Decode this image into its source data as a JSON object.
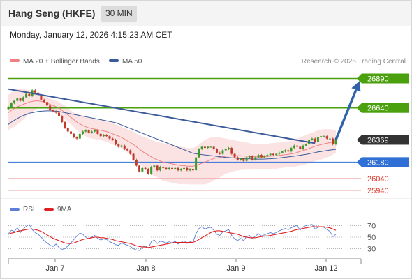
{
  "header": {
    "instrument": "Hang Seng (HKFE)",
    "interval": "30 MIN"
  },
  "datetime": "Monday, January 12, 2026 4:15:23 AM CET",
  "credit": "Research © 2026 Trading Central",
  "colors": {
    "resistance": "#4aa00d",
    "support": "#2f6fd6",
    "support_light": "#e88a8a",
    "ma20": "#f08080",
    "ma50": "#3a5a9a",
    "bands": "#fbe3e3",
    "trend": "#3a5a9a",
    "arrow": "#2f63a8",
    "candle_up": "#3a9a2a",
    "candle_down": "#c0392b",
    "rsi": "#5b7fd6",
    "rsi_ma": "#e02020",
    "last": "#333333"
  },
  "chart_data": [
    {
      "type": "candlestick",
      "title": "",
      "legend": [
        {
          "name": "MA 20 + Bollinger Bands",
          "color": "#f08080"
        },
        {
          "name": "MA 50",
          "color": "#3a5a9a"
        }
      ],
      "x_ticks": [
        "Jan 7",
        "Jan 8",
        "Jan 9",
        "Jan 12"
      ],
      "ylim": [
        25880,
        26970
      ],
      "levels": [
        {
          "value": 26890,
          "label": "26890",
          "kind": "resistance"
        },
        {
          "value": 26640,
          "label": "26640",
          "kind": "resistance"
        },
        {
          "value": 26369,
          "label": "26369",
          "kind": "last"
        },
        {
          "value": 26180,
          "label": "26180",
          "kind": "support"
        },
        {
          "value": 26040,
          "label": "26040",
          "kind": "support-light"
        },
        {
          "value": 25940,
          "label": "25940",
          "kind": "support-light"
        }
      ],
      "trendline": {
        "from_index": 0,
        "from_value": 26800,
        "to_index": 103,
        "to_value": 26340
      },
      "arrow": {
        "from_index": 110,
        "from_value": 26370,
        "to_index": 118,
        "to_value": 26870
      },
      "close": [
        26650,
        26680,
        26700,
        26720,
        26700,
        26730,
        26760,
        26740,
        26790,
        26770,
        26750,
        26710,
        26690,
        26660,
        26620,
        26610,
        26600,
        26570,
        26520,
        26470,
        26440,
        26420,
        26390,
        26380,
        26420,
        26440,
        26450,
        26430,
        26440,
        26450,
        26420,
        26400,
        26410,
        26400,
        26380,
        26370,
        26330,
        26310,
        26320,
        26290,
        26280,
        26250,
        26200,
        26150,
        26100,
        26130,
        26120,
        26080,
        26140,
        26150,
        26110,
        26140,
        26130,
        26120,
        26130,
        26120,
        26130,
        26110,
        26120,
        26130,
        26110,
        26120,
        26110,
        26220,
        26290,
        26310,
        26300,
        26310,
        26310,
        26290,
        26260,
        26250,
        26280,
        26290,
        26300,
        26250,
        26220,
        26200,
        26210,
        26190,
        26220,
        26230,
        26200,
        26220,
        26240,
        26220,
        26230,
        26240,
        26250,
        26240,
        26250,
        26260,
        26270,
        26280,
        26270,
        26300,
        26320,
        26310,
        26290,
        26320,
        26330,
        26370,
        26380,
        26350,
        26390,
        26400,
        26400,
        26380,
        26380,
        26330,
        26369
      ],
      "ma20": [
        26600,
        26620,
        26635,
        26650,
        26660,
        26670,
        26680,
        26690,
        26695,
        26700,
        26700,
        26695,
        26690,
        26680,
        26670,
        26660,
        26650,
        26640,
        26620,
        26600,
        26580,
        26560,
        26540,
        26520,
        26505,
        26490,
        26480,
        26470,
        26465,
        26460,
        26455,
        26450,
        26445,
        26440,
        26430,
        26420,
        26410,
        26400,
        26390,
        26375,
        26360,
        26345,
        26330,
        26310,
        26290,
        26270,
        26255,
        26240,
        26225,
        26210,
        26200,
        26190,
        26180,
        26175,
        26170,
        26165,
        26160,
        26155,
        26150,
        26150,
        26145,
        26145,
        26145,
        26150,
        26160,
        26170,
        26180,
        26190,
        26200,
        26210,
        26215,
        26220,
        26225,
        26230,
        26232,
        26234,
        26234,
        26234,
        26234,
        26232,
        26230,
        26228,
        26226,
        26224,
        26224,
        26225,
        26226,
        26228,
        26230,
        26232,
        26234,
        26237,
        26240,
        26243,
        26246,
        26250,
        26255,
        26262,
        26270,
        26278,
        26286,
        26295,
        26305,
        26315,
        26322,
        26328,
        26335,
        26340,
        26345,
        26350,
        26355
      ],
      "bb_upper": [
        26750,
        26770,
        26790,
        26800,
        26800,
        26800,
        26795,
        26790,
        26785,
        26780,
        26760,
        26750,
        26740,
        26730,
        26720,
        26710,
        26700,
        26690,
        26675,
        26660,
        26640,
        26620,
        26600,
        26590,
        26580,
        26570,
        26560,
        26555,
        26550,
        26545,
        26540,
        26535,
        26530,
        26525,
        26520,
        26510,
        26500,
        26490,
        26480,
        26470,
        26460,
        26450,
        26440,
        26420,
        26410,
        26400,
        26390,
        26380,
        26370,
        26360,
        26350,
        26345,
        26340,
        26335,
        26330,
        26325,
        26320,
        26315,
        26310,
        26305,
        26300,
        26300,
        26300,
        26310,
        26330,
        26350,
        26370,
        26380,
        26390,
        26395,
        26395,
        26390,
        26385,
        26380,
        26375,
        26370,
        26365,
        26360,
        26355,
        26350,
        26345,
        26340,
        26335,
        26330,
        26330,
        26330,
        26330,
        26335,
        26340,
        26340,
        26345,
        26345,
        26350,
        26350,
        26355,
        26360,
        26370,
        26380,
        26390,
        26400,
        26410,
        26420,
        26430,
        26440,
        26450,
        26455,
        26460,
        26460,
        26460,
        26455,
        26450
      ],
      "bb_lower": [
        26450,
        26470,
        26480,
        26500,
        26520,
        26540,
        26565,
        26590,
        26605,
        26620,
        26640,
        26640,
        26640,
        26630,
        26620,
        26610,
        26600,
        26590,
        26565,
        26540,
        26520,
        26500,
        26480,
        26450,
        26430,
        26410,
        26400,
        26385,
        26380,
        26375,
        26370,
        26365,
        26360,
        26355,
        26340,
        26330,
        26320,
        26310,
        26300,
        26280,
        26260,
        26240,
        26220,
        26200,
        26170,
        26140,
        26120,
        26100,
        26080,
        26060,
        26050,
        26035,
        26020,
        26015,
        26010,
        26005,
        26000,
        25995,
        25990,
        25995,
        25990,
        25990,
        25990,
        25990,
        25990,
        25990,
        25990,
        26000,
        26010,
        26025,
        26035,
        26050,
        26065,
        26080,
        26089,
        26098,
        26103,
        26108,
        26113,
        26114,
        26115,
        26116,
        26117,
        26118,
        26118,
        26120,
        26122,
        26121,
        26120,
        26124,
        26123,
        26129,
        26130,
        26136,
        26137,
        26140,
        26140,
        26144,
        26150,
        26156,
        26162,
        26170,
        26180,
        26190,
        26194,
        26201,
        26210,
        26220,
        26230,
        26245,
        26260
      ],
      "ma50": [
        26500,
        26520,
        26535,
        26550,
        26565,
        26575,
        26585,
        26595,
        26600,
        26605,
        26610,
        26612,
        26614,
        26615,
        26615,
        26614,
        26612,
        26610,
        26605,
        26600,
        26595,
        26590,
        26585,
        26580,
        26575,
        26570,
        26565,
        26560,
        26555,
        26550,
        26545,
        26540,
        26535,
        26530,
        26525,
        26520,
        26515,
        26505,
        26495,
        26485,
        26475,
        26465,
        26455,
        26445,
        26435,
        26425,
        26415,
        26405,
        26395,
        26385,
        26375,
        26365,
        26355,
        26345,
        26335,
        26325,
        26315,
        26305,
        26295,
        26285,
        26275,
        26265,
        26255,
        26250,
        26247,
        26244,
        26241,
        26238,
        26235,
        26232,
        26229,
        26226,
        26223,
        26220,
        26218,
        26216,
        26214,
        26212,
        26210,
        26209,
        26208,
        26207,
        26206,
        26205,
        26205,
        26205,
        26206,
        26207,
        26208,
        26210,
        26212,
        26215,
        26218,
        26221,
        26224,
        26227,
        26230,
        26234,
        26238,
        26242,
        26246,
        26251,
        26256,
        26261,
        26266,
        26270,
        26274,
        26278,
        26282,
        26285,
        26288
      ]
    },
    {
      "type": "line",
      "title": "",
      "legend": [
        {
          "name": "RSI",
          "color": "#5b7fd6"
        },
        {
          "name": "9MA",
          "color": "#e02020"
        }
      ],
      "ylim": [
        15,
        85
      ],
      "y_ticks": [
        70,
        50,
        30
      ],
      "series": [
        {
          "name": "RSI",
          "values": [
            56,
            62,
            60,
            66,
            58,
            64,
            69,
            72,
            63,
            58,
            55,
            50,
            44,
            40,
            36,
            34,
            38,
            32,
            29,
            30,
            35,
            40,
            46,
            52,
            57,
            55,
            50,
            47,
            50,
            53,
            48,
            45,
            47,
            46,
            42,
            40,
            37,
            36,
            40,
            38,
            36,
            34,
            30,
            28,
            27,
            33,
            35,
            31,
            42,
            45,
            39,
            43,
            42,
            40,
            42,
            40,
            43,
            38,
            41,
            44,
            39,
            42,
            41,
            56,
            65,
            68,
            64,
            66,
            67,
            62,
            55,
            53,
            59,
            61,
            63,
            53,
            47,
            44,
            48,
            44,
            51,
            53,
            47,
            52,
            56,
            52,
            54,
            56,
            58,
            56,
            58,
            61,
            63,
            65,
            63,
            66,
            69,
            70,
            62,
            68,
            70,
            71,
            72,
            64,
            67,
            68,
            67,
            63,
            60,
            51,
            55
          ]
        },
        {
          "name": "9MA",
          "values": [
            55,
            57,
            58,
            60,
            61,
            62,
            63,
            64,
            64,
            63,
            62,
            60,
            57,
            54,
            51,
            48,
            46,
            44,
            42,
            40,
            39,
            39,
            40,
            42,
            44,
            46,
            47,
            48,
            49,
            50,
            50,
            49,
            49,
            48,
            47,
            46,
            44,
            43,
            42,
            41,
            40,
            39,
            37,
            35,
            34,
            33,
            33,
            32,
            33,
            34,
            35,
            36,
            37,
            38,
            39,
            40,
            41,
            41,
            41,
            41,
            41,
            41,
            41,
            43,
            46,
            49,
            52,
            55,
            58,
            60,
            61,
            61,
            60,
            59,
            58,
            57,
            56,
            55,
            53,
            51,
            50,
            49,
            49,
            49,
            50,
            51,
            52,
            52,
            53,
            54,
            55,
            56,
            57,
            58,
            59,
            60,
            62,
            63,
            64,
            65,
            66,
            67,
            68,
            68,
            68,
            68,
            68,
            67,
            66,
            64,
            62
          ]
        }
      ]
    }
  ]
}
